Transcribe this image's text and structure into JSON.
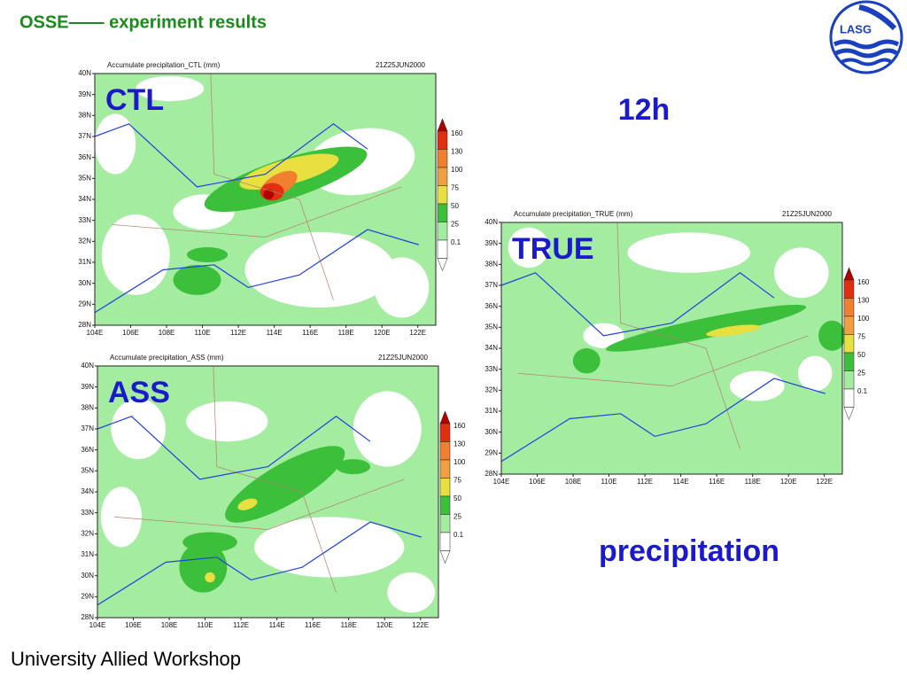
{
  "header": {
    "title": "OSSE—— experiment results",
    "logo": "LASG"
  },
  "labels": {
    "period": "12h",
    "variable": "precipitation"
  },
  "footer": "University Allied Workshop",
  "panels": [
    {
      "title": "Accumulate precipitation_CTL (mm)",
      "date": "21Z25JUN2000",
      "label": "CTL"
    },
    {
      "title": "Accumulate precipitation_TRUE (mm)",
      "date": "21Z25JUN2000",
      "label": "TRUE"
    },
    {
      "title": "Accumulate precipitation_ASS (mm)",
      "date": "21Z25JUN2000",
      "label": "ASS"
    }
  ],
  "lat_labels": [
    "40N",
    "39N",
    "38N",
    "37N",
    "36N",
    "35N",
    "34N",
    "33N",
    "32N",
    "31N",
    "30N",
    "29N",
    "28N"
  ],
  "lon_labels": [
    "104E",
    "106E",
    "108E",
    "110E",
    "112E",
    "114E",
    "116E",
    "118E",
    "120E",
    "122E"
  ],
  "colorbar_labels": [
    "160",
    "130",
    "100",
    "75",
    "50",
    "25",
    "0.1"
  ]
}
